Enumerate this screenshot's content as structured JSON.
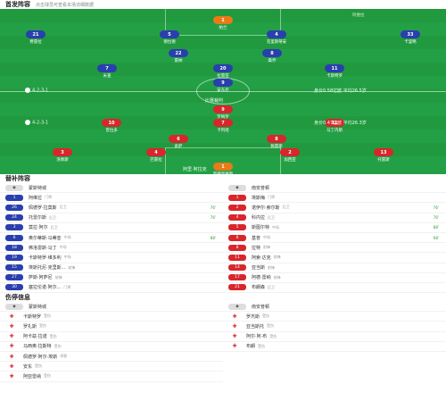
{
  "header": {
    "title": "首发阵容",
    "subtitle": "点击球员可查看本场详细数据"
  },
  "pitch": {
    "home_info": "4-2-3-1",
    "home_stat": "身价0.58亿欧 平均26.5岁",
    "away_info": "4-2-3-1",
    "away_stat": "身价0.47亿欧 平均26.3岁",
    "ref_label": "比赛裁判",
    "coach_top": "阿维拉",
    "coach_bottom": "阿里·阿拉克",
    "home_players": [
      {
        "num": "1",
        "name": "帕兰",
        "color": "gk-orange"
      },
      {
        "num": "21",
        "name": "费雷拉",
        "color": "blue"
      },
      {
        "num": "5",
        "name": "德拉德",
        "color": "blue"
      },
      {
        "num": "4",
        "name": "克里斯蒂安",
        "color": "blue"
      },
      {
        "num": "33",
        "name": "卡里略",
        "color": "blue"
      },
      {
        "num": "22",
        "name": "雷纳",
        "color": "blue"
      },
      {
        "num": "8",
        "name": "桑乔",
        "color": "blue"
      },
      {
        "num": "7",
        "name": "米查",
        "color": "blue"
      },
      {
        "num": "20",
        "name": "拉雷亚",
        "color": "blue"
      },
      {
        "num": "11",
        "name": "卡斯特罗",
        "color": "blue"
      },
      {
        "num": "9",
        "name": "安东尼",
        "color": "blue"
      }
    ],
    "away_players": [
      {
        "num": "9",
        "name": "罗梅罗",
        "color": "red"
      },
      {
        "num": "10",
        "name": "普拉多",
        "color": "red"
      },
      {
        "num": "7",
        "name": "卡列哈",
        "color": "red"
      },
      {
        "num": "11",
        "name": "马丁内斯",
        "color": "red"
      },
      {
        "num": "6",
        "name": "索萨",
        "color": "red"
      },
      {
        "num": "8",
        "name": "佩雷斯",
        "color": "red"
      },
      {
        "num": "3",
        "name": "洛佩斯",
        "color": "red"
      },
      {
        "num": "4",
        "name": "巴雷拉",
        "color": "red"
      },
      {
        "num": "2",
        "name": "加西亚",
        "color": "red"
      },
      {
        "num": "13",
        "name": "托雷斯",
        "color": "red"
      },
      {
        "num": "1",
        "name": "罗德里格斯",
        "color": "gk-orange"
      }
    ]
  },
  "subs": {
    "title": "替补阵容",
    "home_team": "蒙斯特城",
    "away_team": "南安普顿",
    "home": [
      {
        "num": "1",
        "name": "阿维拉",
        "pos": "门将"
      },
      {
        "num": "26",
        "name": "佩德罗·拉莫斯",
        "pos": "后卫"
      },
      {
        "num": "24",
        "name": "托雷尔斯",
        "pos": "后卫"
      },
      {
        "num": "3",
        "name": "莫拉·阿尔",
        "pos": "后卫"
      },
      {
        "num": "6",
        "name": "奥尔蒂斯·马蒂亚",
        "pos": "中场"
      },
      {
        "num": "18",
        "name": "弗洛雷斯·马丁",
        "pos": "中场"
      },
      {
        "num": "19",
        "name": "卡斯特罗·维多利",
        "pos": "中场"
      },
      {
        "num": "15",
        "name": "埃斯托尼·克里斯...",
        "pos": "前锋"
      },
      {
        "num": "27",
        "name": "萨斯·阿萨尼",
        "pos": "前锋"
      },
      {
        "num": "30",
        "name": "塞拉伦诺·阿尔...",
        "pos": "门将"
      }
    ],
    "away": [
      {
        "num": "1",
        "name": "埃斯梅",
        "pos": "门将"
      },
      {
        "num": "2",
        "name": "诺伊尔·索尔斯",
        "pos": "后卫",
        "time": "76'"
      },
      {
        "num": "4",
        "name": "科内拉",
        "pos": "后卫",
        "time": "76'"
      },
      {
        "num": "5",
        "name": "斯图尔特",
        "pos": "中场",
        "time": "88'"
      },
      {
        "num": "6",
        "name": "基普",
        "pos": "中场",
        "time": "68'"
      },
      {
        "num": "8",
        "name": "拉特",
        "pos": "前锋"
      },
      {
        "num": "11",
        "name": "阿索·达克",
        "pos": "前锋"
      },
      {
        "num": "14",
        "name": "亚当斯",
        "pos": "前锋"
      },
      {
        "num": "17",
        "name": "阿德·雷纳",
        "pos": "前锋"
      },
      {
        "num": "21",
        "name": "布朗森",
        "pos": "后卫"
      }
    ],
    "home_times": [
      "",
      "76'",
      "76'",
      "",
      "88'",
      "",
      "",
      "",
      "",
      ""
    ]
  },
  "injuries": {
    "title": "伤停信息",
    "home_team": "蒙斯特城",
    "away_team": "南安普顿",
    "home": [
      {
        "name": "卡斯特罗",
        "status": "受伤"
      },
      {
        "name": "罗扎斯",
        "status": "受伤"
      },
      {
        "name": "阿卡兹·拉诺",
        "status": "受伤"
      },
      {
        "name": "马西奥·拉斯特",
        "status": "受伤"
      },
      {
        "name": "佩德罗·阿尔·埃斯",
        "status": "停赛"
      },
      {
        "name": "安东",
        "status": "受伤"
      },
      {
        "name": "阿亚雷纳",
        "status": "受伤"
      }
    ],
    "away": [
      {
        "name": "罗杰斯",
        "status": "受伤"
      },
      {
        "name": "亚当斯托",
        "status": "受伤"
      },
      {
        "name": "阿尔·阿·布",
        "status": "受伤"
      },
      {
        "name": "布朗",
        "status": "受伤"
      }
    ]
  },
  "colors": {
    "pitch": "#23a046",
    "home": "#2a3fae",
    "away": "#d8262c"
  }
}
